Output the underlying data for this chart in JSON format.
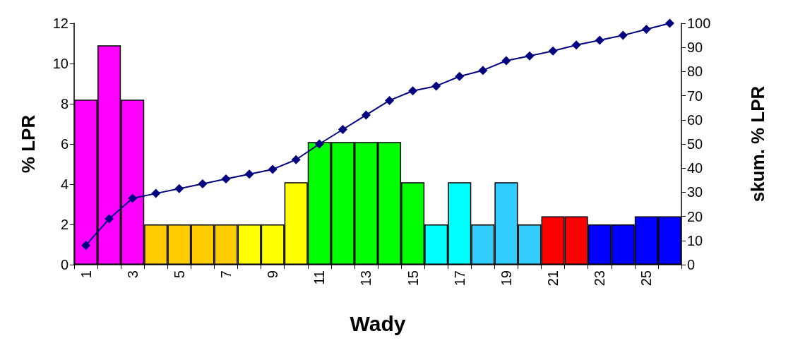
{
  "chart_data": {
    "type": "bar",
    "xlabel": "Wady",
    "ylabel": "% LPR",
    "y2label": "skum. % LPR",
    "categories": [
      "1",
      null,
      "3",
      null,
      "5",
      null,
      "7",
      null,
      "9",
      null,
      "11",
      null,
      "13",
      null,
      "15",
      null,
      "17",
      null,
      "19",
      null,
      "21",
      null,
      "23",
      null,
      "25",
      null
    ],
    "series": [
      {
        "values": [
          8.2,
          10.9,
          8.2,
          2,
          2,
          2,
          2,
          2,
          2,
          4.1,
          6.1,
          6.1,
          6.1,
          6.1,
          4.1,
          2,
          4.1,
          2,
          4.1,
          2,
          2.4,
          2.4,
          2,
          2,
          2.4,
          2.4
        ],
        "colors": [
          "#ff00ff",
          "#ff00ff",
          "#ff00ff",
          "#ffcc00",
          "#ffcc00",
          "#ffcc00",
          "#ffcc00",
          "#ffff00",
          "#ffff00",
          "#ffff00",
          "#00ff00",
          "#00ff00",
          "#00ff00",
          "#00ff00",
          "#00ff00",
          "#00ffff",
          "#00ffff",
          "#33ccff",
          "#33ccff",
          "#33ccff",
          "#ff0000",
          "#ff0000",
          "#0000ff",
          "#0000ff",
          "#0000ff",
          "#0000ff"
        ]
      },
      {
        "type": "line",
        "axis": "y2",
        "color": "#000080",
        "marker": "diamond",
        "values": [
          8,
          19,
          27.5,
          29.5,
          31.5,
          33.5,
          35.5,
          37.5,
          39.5,
          43.5,
          50,
          56,
          62,
          68,
          72,
          74,
          78,
          80.5,
          84.5,
          86.5,
          88.5,
          91,
          93,
          95,
          97.5,
          100
        ]
      }
    ],
    "ylim": [
      0,
      12
    ],
    "yticks": [
      0,
      2,
      4,
      6,
      8,
      10,
      12
    ],
    "y2lim": [
      0,
      100
    ],
    "y2ticks": [
      0,
      10,
      20,
      30,
      40,
      50,
      60,
      70,
      80,
      90,
      100
    ],
    "grid": false
  }
}
